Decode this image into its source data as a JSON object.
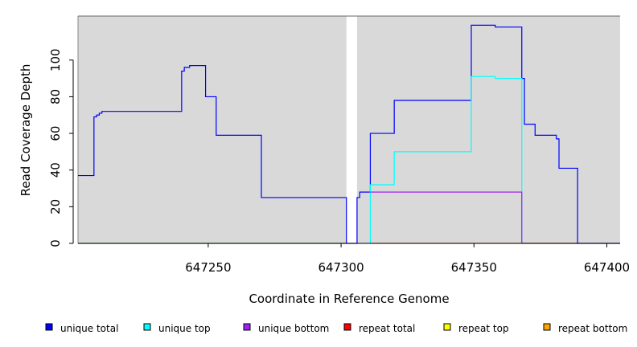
{
  "chart_data": {
    "type": "line",
    "title": "",
    "xlabel": "Coordinate in Reference Genome",
    "ylabel": "Read Coverage Depth",
    "xlim": [
      647201,
      647405
    ],
    "ylim": [
      0,
      124
    ],
    "x_ticks": [
      647250,
      647300,
      647350,
      647400
    ],
    "x_tick_labels": [
      "647250",
      "647300",
      "647350",
      "647400"
    ],
    "y_ticks": [
      0,
      20,
      40,
      60,
      80,
      100
    ],
    "y_tick_labels": [
      "0",
      "20",
      "40",
      "60",
      "80",
      "100"
    ],
    "grid": false,
    "background": "#d9d9d9",
    "gap_region": [
      647302,
      647306
    ],
    "legend_position": "bottom",
    "series": [
      {
        "name": "unique total",
        "color": "#0000ff",
        "step": true,
        "points": [
          [
            647201,
            37
          ],
          [
            647207,
            37
          ],
          [
            647207,
            69
          ],
          [
            647208,
            69
          ],
          [
            647208,
            70
          ],
          [
            647209,
            70
          ],
          [
            647209,
            71
          ],
          [
            647210,
            71
          ],
          [
            647210,
            72
          ],
          [
            647240,
            72
          ],
          [
            647240,
            94
          ],
          [
            647241,
            94
          ],
          [
            647241,
            96
          ],
          [
            647243,
            96
          ],
          [
            647243,
            97
          ],
          [
            647249,
            97
          ],
          [
            647249,
            80
          ],
          [
            647253,
            80
          ],
          [
            647253,
            59
          ],
          [
            647270,
            59
          ],
          [
            647270,
            25
          ],
          [
            647302,
            25
          ],
          [
            647302,
            0
          ],
          [
            647306,
            0
          ],
          [
            647306,
            25
          ],
          [
            647307,
            25
          ],
          [
            647307,
            28
          ],
          [
            647311,
            28
          ],
          [
            647311,
            60
          ],
          [
            647320,
            60
          ],
          [
            647320,
            78
          ],
          [
            647349,
            78
          ],
          [
            647349,
            119
          ],
          [
            647358,
            119
          ],
          [
            647358,
            118
          ],
          [
            647368,
            118
          ],
          [
            647368,
            90
          ],
          [
            647369,
            90
          ],
          [
            647369,
            65
          ],
          [
            647373,
            65
          ],
          [
            647373,
            59
          ],
          [
            647381,
            59
          ],
          [
            647381,
            57
          ],
          [
            647382,
            57
          ],
          [
            647382,
            41
          ],
          [
            647389,
            41
          ],
          [
            647389,
            0
          ],
          [
            647405,
            0
          ]
        ]
      },
      {
        "name": "unique top",
        "color": "#00ffff",
        "step": true,
        "points": [
          [
            647311,
            0
          ],
          [
            647311,
            32
          ],
          [
            647320,
            32
          ],
          [
            647320,
            50
          ],
          [
            647349,
            50
          ],
          [
            647349,
            91
          ],
          [
            647358,
            91
          ],
          [
            647358,
            90
          ],
          [
            647368,
            90
          ],
          [
            647368,
            0
          ]
        ]
      },
      {
        "name": "unique bottom",
        "color": "#a020f0",
        "step": true,
        "points": [
          [
            647311,
            28
          ],
          [
            647368,
            28
          ],
          [
            647368,
            0
          ]
        ]
      },
      {
        "name": "repeat total",
        "color": "#ff0000",
        "step": true,
        "points": [
          [
            647368,
            0
          ],
          [
            647389,
            0
          ]
        ]
      },
      {
        "name": "repeat top",
        "color": "#ffff00",
        "step": true,
        "points": []
      },
      {
        "name": "repeat bottom",
        "color": "#ffa500",
        "step": true,
        "points": [
          [
            647311,
            0
          ],
          [
            647368,
            0
          ]
        ]
      },
      {
        "name": "",
        "color": "#00c000",
        "step": true,
        "points": [
          [
            647201,
            0
          ],
          [
            647302,
            0
          ]
        ]
      }
    ]
  }
}
